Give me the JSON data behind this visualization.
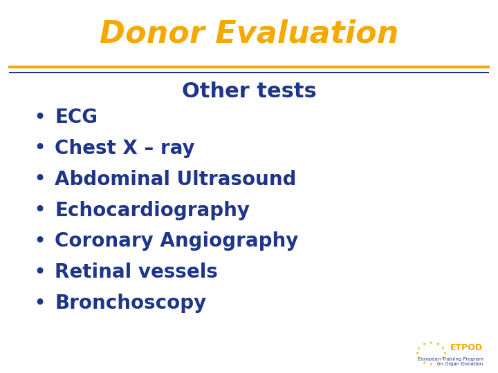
{
  "title": "Donor Evaluation",
  "title_color": "#F5A800",
  "subtitle": "Other tests",
  "subtitle_color": "#1F3688",
  "bullet_items": [
    "ECG",
    "Chest X – ray",
    "Abdominal Ultrasound",
    "Echocardiography",
    "Coronary Angiography",
    "Retinal vessels",
    "Bronchoscopy"
  ],
  "bullet_color": "#1F3688",
  "bullet_dot_color": "#1F3688",
  "line_color_top": "#F5A800",
  "line_color_bottom": "#1F3688",
  "background_color": "#FFFFFF",
  "title_fontsize": 32,
  "subtitle_fontsize": 22,
  "bullet_fontsize": 20
}
